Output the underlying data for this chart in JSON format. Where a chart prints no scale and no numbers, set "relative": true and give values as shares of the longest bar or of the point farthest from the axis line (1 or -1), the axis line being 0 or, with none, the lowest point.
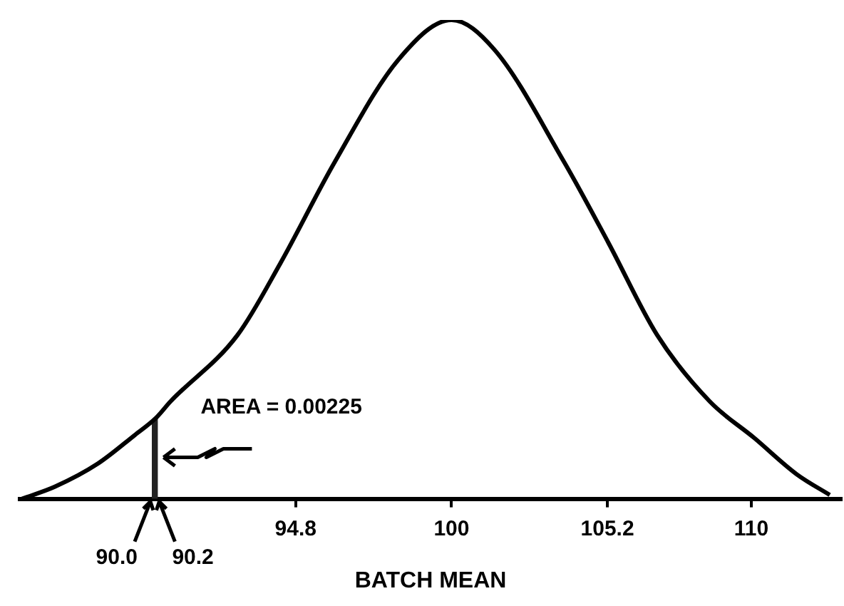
{
  "chart_data": {
    "type": "line",
    "relative": true,
    "xlabel": "BATCH MEAN",
    "marker": "none",
    "line_style": "solid",
    "grid": false,
    "legend": false,
    "xlim": [
      85.6,
      113
    ],
    "xticks": [
      94.8,
      100,
      105.2,
      110
    ],
    "annotations": [
      {
        "text": "90.0",
        "x": 90,
        "y": 0
      },
      {
        "text": "90.2",
        "x": 90.2,
        "y": 0
      }
    ],
    "series": [
      {
        "color": "#000000",
        "x": [
          85.67,
          86.76,
          88.19,
          89.43,
          90.14,
          90.62,
          92.86,
          94.29,
          96.1,
          98.24,
          100,
          101.43,
          103.76,
          105.24,
          106.86,
          108.62,
          110.1,
          111.52,
          112.62
        ],
        "values": [
          0,
          0.025,
          0.073,
          0.133,
          0.169,
          0.203,
          0.342,
          0.492,
          0.703,
          0.918,
          1,
          0.938,
          0.703,
          0.534,
          0.342,
          0.203,
          0.127,
          0.051,
          0.008
        ]
      }
    ],
    "bands": [
      {
        "axis": "x",
        "from": 90,
        "to": 90.2,
        "label": "AREA = 0.00225",
        "color": "#222222"
      }
    ]
  }
}
